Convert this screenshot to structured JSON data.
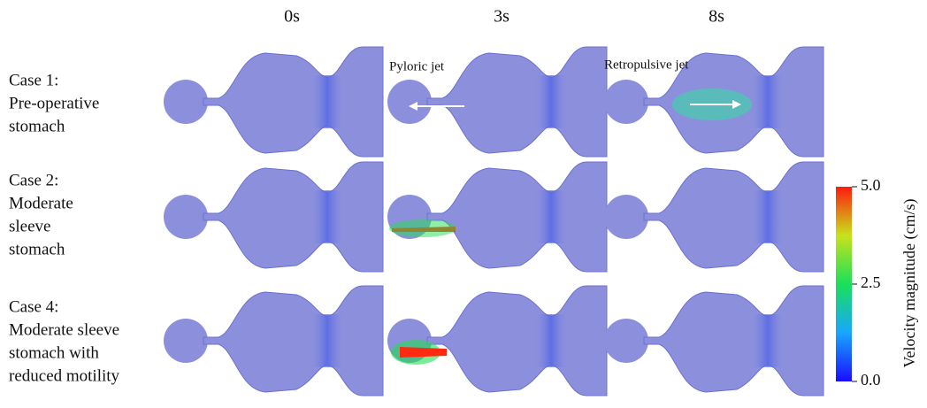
{
  "columns": [
    "0s",
    "3s",
    "8s"
  ],
  "rows": [
    {
      "label": [
        "Case 1:",
        "Pre-operative",
        "stomach"
      ]
    },
    {
      "label": [
        "Case 2:",
        "Moderate",
        "sleeve",
        "stomach"
      ]
    },
    {
      "label": [
        "Case 4:",
        "Moderate sleeve",
        "stomach with",
        "reduced motility"
      ]
    }
  ],
  "annotations": [
    "Pyloric jet",
    "Retropulsive jet"
  ],
  "colorbar": {
    "label": "Velocity magnitude (cm/s)",
    "lim": [
      0,
      5
    ],
    "ticks": [
      {
        "value": 0,
        "label": "0.0"
      },
      2.5,
      {
        "value": 5,
        "label": "5.0"
      }
    ]
  }
}
